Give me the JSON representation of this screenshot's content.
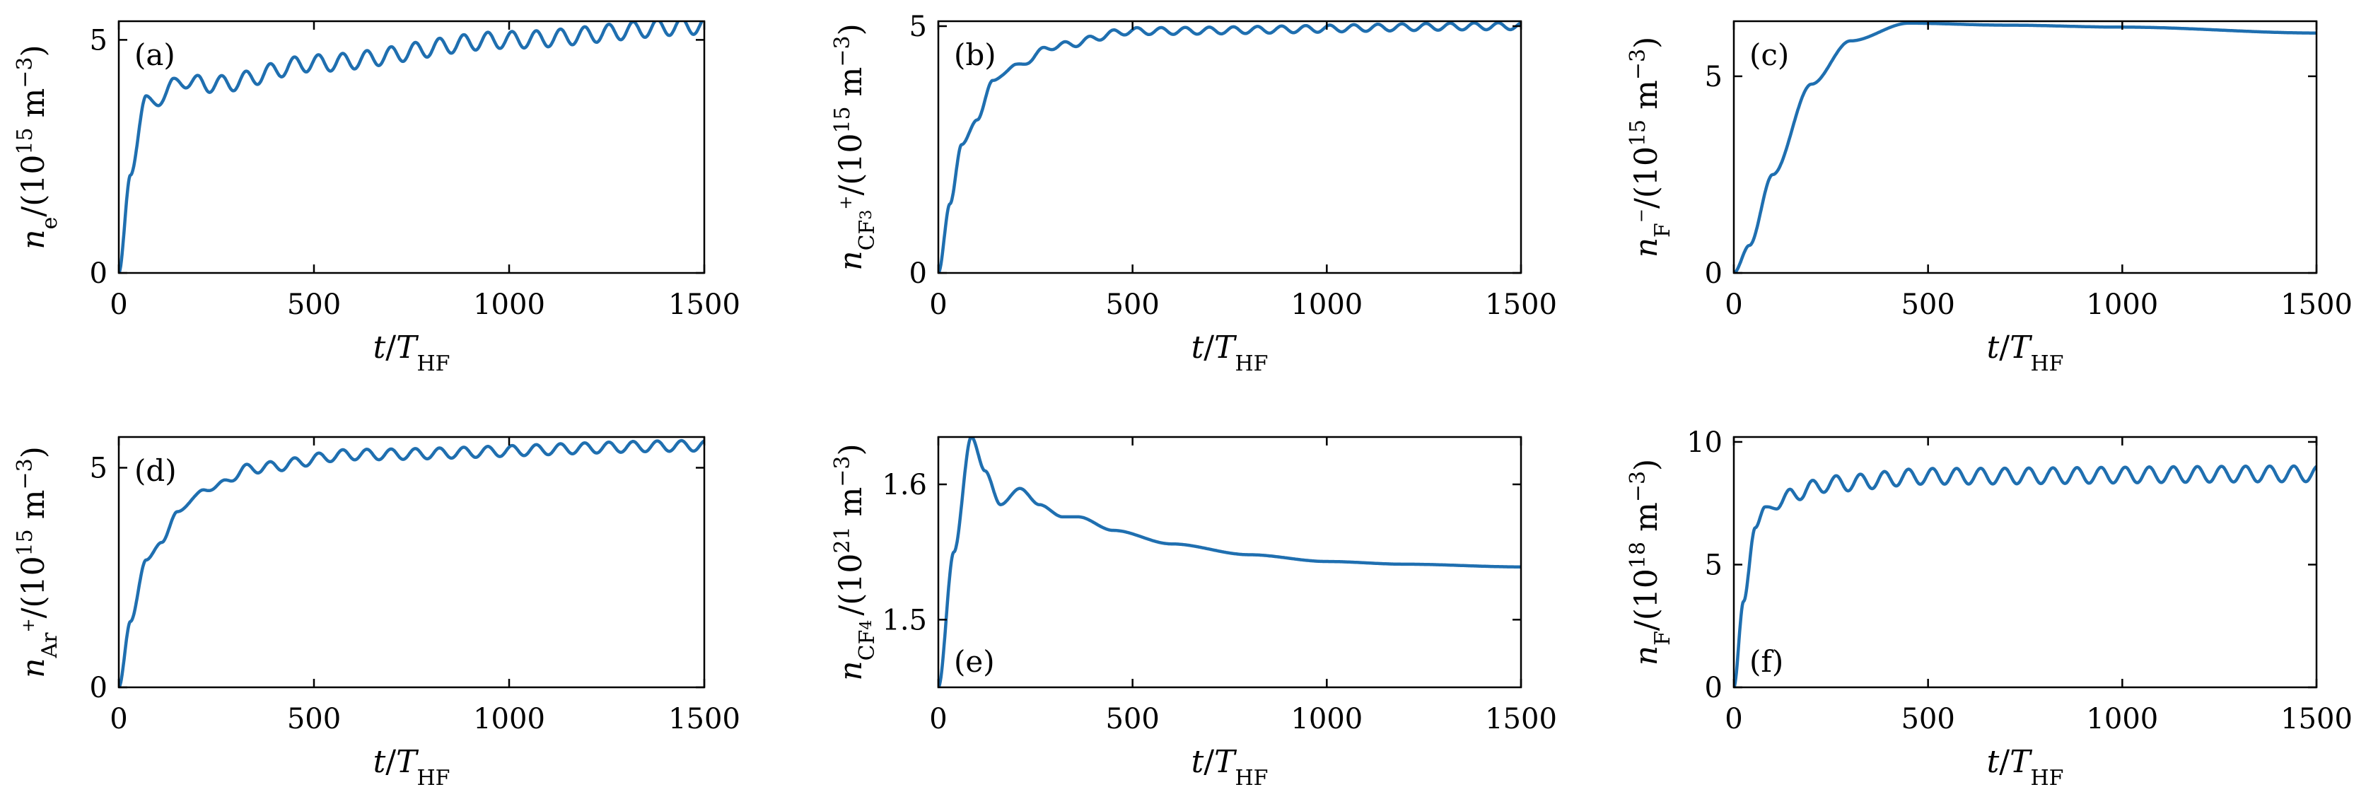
{
  "figure": {
    "line_color": "#1f6fb0",
    "axis_color": "#000000"
  },
  "chart_data": [
    {
      "id": "a",
      "type": "line",
      "panel_label": "(a)",
      "xlabel": "t/THF",
      "ylabel": "ne/(1015 m−3)",
      "xlim": [
        0,
        1500
      ],
      "ylim": [
        0,
        5.4
      ],
      "xticks": [
        0,
        500,
        1000,
        1500
      ],
      "yticks": [
        0,
        5
      ],
      "ytick_labels": [
        "0",
        "5"
      ],
      "gen": {
        "kind": "osc",
        "rise": [
          [
            0,
            0
          ],
          [
            30,
            2.1
          ],
          [
            70,
            3.8
          ],
          [
            100,
            3.6
          ],
          [
            140,
            4.1
          ],
          [
            250,
            4.05
          ],
          [
            500,
            4.5
          ],
          [
            1000,
            5.0
          ],
          [
            1500,
            5.3
          ]
        ],
        "amp": 0.18,
        "period": 62,
        "amp_start": 90
      },
      "x": [
        0,
        30,
        70,
        100,
        140,
        250,
        500,
        1000,
        1500
      ],
      "y": [
        0,
        2.1,
        3.8,
        3.6,
        4.1,
        4.05,
        4.5,
        5.0,
        5.3
      ]
    },
    {
      "id": "b",
      "type": "line",
      "panel_label": "(b)",
      "xlabel": "t/THF",
      "ylabel": "nCF3+/(1015 m−3)",
      "xlim": [
        0,
        1500
      ],
      "ylim": [
        0,
        5.1
      ],
      "xticks": [
        0,
        500,
        1000,
        1500
      ],
      "yticks": [
        0,
        5
      ],
      "ytick_labels": [
        "0",
        "5"
      ],
      "gen": {
        "kind": "osc",
        "rise": [
          [
            0,
            0
          ],
          [
            30,
            1.4
          ],
          [
            60,
            2.6
          ],
          [
            100,
            3.1
          ],
          [
            140,
            3.9
          ],
          [
            200,
            4.2
          ],
          [
            300,
            4.6
          ],
          [
            500,
            4.9
          ],
          [
            1500,
            5.0
          ]
        ],
        "amp": 0.07,
        "period": 62,
        "amp_start": 150
      },
      "x": [
        0,
        30,
        60,
        100,
        140,
        200,
        300,
        500,
        1500
      ],
      "y": [
        0,
        1.4,
        2.6,
        3.1,
        3.9,
        4.2,
        4.6,
        4.9,
        5.0
      ]
    },
    {
      "id": "c",
      "type": "line",
      "panel_label": "(c)",
      "xlabel": "t/THF",
      "ylabel": "nF−/(1015 m−3)",
      "xlim": [
        0,
        1500
      ],
      "ylim": [
        0,
        6.4
      ],
      "xticks": [
        0,
        500,
        1000,
        1500
      ],
      "yticks": [
        0,
        5
      ],
      "ytick_labels": [
        "0",
        "5"
      ],
      "gen": {
        "kind": "smooth",
        "rise": [
          [
            0,
            0
          ],
          [
            40,
            0.7
          ],
          [
            100,
            2.5
          ],
          [
            200,
            4.8
          ],
          [
            300,
            5.9
          ],
          [
            450,
            6.35
          ],
          [
            700,
            6.3
          ],
          [
            1000,
            6.25
          ],
          [
            1500,
            6.1
          ]
        ]
      },
      "x": [
        0,
        40,
        100,
        200,
        300,
        450,
        700,
        1000,
        1500
      ],
      "y": [
        0,
        0.7,
        2.5,
        4.8,
        5.9,
        6.35,
        6.3,
        6.25,
        6.1
      ]
    },
    {
      "id": "d",
      "type": "line",
      "panel_label": "(d)",
      "xlabel": "t/THF",
      "ylabel": "nAr+/(1015 m−3)",
      "xlim": [
        0,
        1500
      ],
      "ylim": [
        0,
        5.7
      ],
      "xticks": [
        0,
        500,
        1000,
        1500
      ],
      "yticks": [
        0,
        5
      ],
      "ytick_labels": [
        "0",
        "5"
      ],
      "gen": {
        "kind": "osc",
        "rise": [
          [
            0,
            0
          ],
          [
            30,
            1.5
          ],
          [
            70,
            2.9
          ],
          [
            110,
            3.3
          ],
          [
            150,
            4.0
          ],
          [
            220,
            4.5
          ],
          [
            350,
            5.0
          ],
          [
            600,
            5.3
          ],
          [
            1500,
            5.5
          ]
        ],
        "amp": 0.12,
        "period": 62,
        "amp_start": 200
      },
      "x": [
        0,
        30,
        70,
        110,
        150,
        220,
        350,
        600,
        1500
      ],
      "y": [
        0,
        1.5,
        2.9,
        3.3,
        4.0,
        4.5,
        5.0,
        5.3,
        5.5
      ]
    },
    {
      "id": "e",
      "type": "line",
      "panel_label": "(e)",
      "xlabel": "t/THF",
      "ylabel": "nCF4/(1021 m−3)",
      "xlim": [
        0,
        1500
      ],
      "ylim": [
        1.45,
        1.635
      ],
      "xticks": [
        0,
        500,
        1000,
        1500
      ],
      "yticks": [
        1.5,
        1.6
      ],
      "ytick_labels": [
        "1.5",
        "1.6"
      ],
      "gen": {
        "kind": "smooth",
        "rise": [
          [
            0,
            1.45
          ],
          [
            40,
            1.55
          ],
          [
            85,
            1.635
          ],
          [
            120,
            1.61
          ],
          [
            160,
            1.585
          ],
          [
            210,
            1.597
          ],
          [
            260,
            1.585
          ],
          [
            320,
            1.576
          ],
          [
            360,
            1.576
          ],
          [
            450,
            1.566
          ],
          [
            600,
            1.556
          ],
          [
            800,
            1.548
          ],
          [
            1000,
            1.543
          ],
          [
            1200,
            1.541
          ],
          [
            1500,
            1.539
          ]
        ]
      },
      "x": [
        0,
        40,
        85,
        120,
        160,
        210,
        260,
        320,
        360,
        450,
        600,
        800,
        1000,
        1200,
        1500
      ],
      "y": [
        1.45,
        1.55,
        1.635,
        1.61,
        1.585,
        1.597,
        1.585,
        1.576,
        1.576,
        1.566,
        1.556,
        1.548,
        1.543,
        1.541,
        1.539
      ]
    },
    {
      "id": "f",
      "type": "line",
      "panel_label": "(f)",
      "xlabel": "t/THF",
      "ylabel": "nF/(1018 m−3)",
      "xlim": [
        0,
        1500
      ],
      "ylim": [
        0,
        10.2
      ],
      "xticks": [
        0,
        500,
        1000,
        1500
      ],
      "yticks": [
        0,
        5,
        10
      ],
      "ytick_labels": [
        "0",
        "5",
        "10"
      ],
      "gen": {
        "kind": "osc",
        "rise": [
          [
            0,
            0
          ],
          [
            25,
            3.5
          ],
          [
            55,
            6.5
          ],
          [
            80,
            7.3
          ],
          [
            110,
            7.4
          ],
          [
            150,
            7.9
          ],
          [
            250,
            8.3
          ],
          [
            500,
            8.6
          ],
          [
            1500,
            8.7
          ]
        ],
        "amp": 0.32,
        "period": 62,
        "amp_start": 60
      },
      "x": [
        0,
        25,
        55,
        80,
        110,
        150,
        250,
        500,
        1500
      ],
      "y": [
        0,
        3.5,
        6.5,
        7.3,
        7.4,
        7.9,
        8.3,
        8.6,
        8.7
      ]
    }
  ]
}
